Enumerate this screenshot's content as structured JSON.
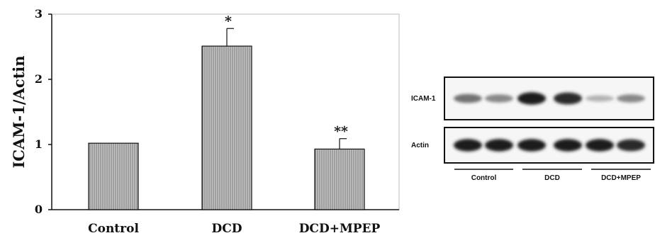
{
  "chart_data": {
    "type": "bar",
    "categories": [
      "Control",
      "DCD",
      "DCD+MPEP"
    ],
    "values": [
      1.02,
      2.51,
      0.93
    ],
    "errors": [
      0,
      0.27,
      0.16
    ],
    "significance": [
      "",
      "*",
      "**"
    ],
    "ylabel": "ICAM-1/Actin",
    "ylim": [
      0,
      3
    ],
    "yticks": [
      "0",
      "1",
      "2",
      "3"
    ],
    "bar_color": "#a8a8a8",
    "grid": false
  },
  "blot": {
    "rows": [
      {
        "label": "ICAM-1",
        "intensity": [
          0.55,
          0.45,
          0.95,
          0.9,
          0.25,
          0.45
        ]
      },
      {
        "label": "Actin",
        "intensity": [
          0.95,
          0.95,
          0.95,
          0.95,
          0.95,
          0.9
        ]
      }
    ],
    "groups": [
      "Control",
      "DCD",
      "DCD+MPEP"
    ]
  }
}
